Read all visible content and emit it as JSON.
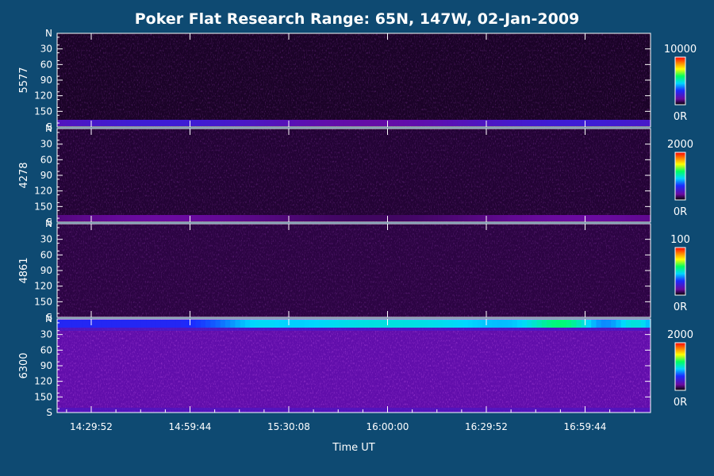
{
  "chart_data": {
    "type": "heatmap",
    "title": "Poker Flat Research Range: 65N, 147W, 02-Jan-2009",
    "xlabel": "Time UT",
    "x_ticks": [
      "14:29:52",
      "14:59:44",
      "15:30:08",
      "16:00:00",
      "16:29:52",
      "16:59:44"
    ],
    "y_ticks": [
      "N",
      "30",
      "60",
      "90",
      "120",
      "150",
      "S"
    ],
    "panels": [
      {
        "ylabel": "5577",
        "scale_max": "10000",
        "scale_min": "0R",
        "bright_band": "south",
        "band_level": 0.22,
        "background_level": 0.03
      },
      {
        "ylabel": "4278",
        "scale_max": "2000",
        "scale_min": "0R",
        "bright_band": "south",
        "band_level": 0.12,
        "background_level": 0.04
      },
      {
        "ylabel": "4861",
        "scale_max": "100",
        "scale_min": "0R",
        "bright_band": "none",
        "band_level": 0.0,
        "background_level": 0.05
      },
      {
        "ylabel": "6300",
        "scale_max": "2000",
        "scale_min": "0R",
        "bright_band": "north",
        "band_level": 0.8,
        "background_level": 0.14
      }
    ]
  }
}
